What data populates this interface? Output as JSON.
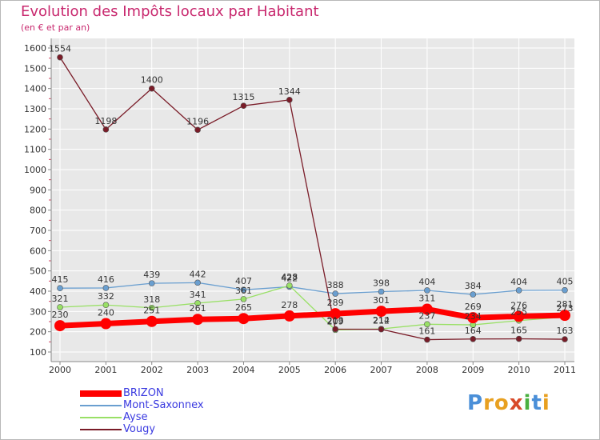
{
  "chart_data": {
    "type": "line",
    "title": "Evolution des Impôts locaux par Habitant",
    "subtitle": "(en € et par an)",
    "xlabel": "",
    "ylabel": "",
    "x": [
      "2000",
      "2001",
      "2002",
      "2003",
      "2004",
      "2005",
      "2006",
      "2007",
      "2008",
      "2009",
      "2010",
      "2011"
    ],
    "yticks": [
      100,
      200,
      300,
      400,
      500,
      600,
      700,
      800,
      900,
      1000,
      1100,
      1200,
      1300,
      1400,
      1500,
      1600
    ],
    "ylim": [
      100,
      1600
    ],
    "grid": true,
    "legend_position": "bottom-left",
    "series": [
      {
        "name": "BRIZON",
        "color": "#ff0000",
        "values": [
          230,
          240,
          251,
          261,
          265,
          278,
          289,
          301,
          311,
          269,
          276,
          281
        ],
        "labels": [
          "230",
          "240",
          "251",
          "261",
          "265",
          "278",
          "289",
          "301",
          "311",
          "269",
          "276",
          "281"
        ]
      },
      {
        "name": "Mont-Saxonnex",
        "color": "#6a9fd0",
        "values": [
          415,
          416,
          439,
          442,
          407,
          422,
          388,
          398,
          404,
          384,
          404,
          405
        ],
        "labels": [
          "415",
          "416",
          "439",
          "442",
          "407",
          "422",
          "388",
          "398",
          "404",
          "384",
          "404",
          "405"
        ]
      },
      {
        "name": "Ayse",
        "color": "#99e066",
        "values": [
          321,
          332,
          318,
          341,
          361,
          428,
          209,
          214,
          237,
          234,
          255,
          273
        ],
        "labels": [
          "321",
          "332",
          "318",
          "341",
          "361",
          "428",
          "209",
          "214",
          "237",
          "234",
          "255",
          "273"
        ]
      },
      {
        "name": "Vougy",
        "color": "#7a1c28",
        "values": [
          1554,
          1198,
          1400,
          1196,
          1315,
          1344,
          213,
          212,
          161,
          164,
          165,
          163
        ],
        "labels": [
          "1554",
          "1198",
          "1400",
          "1196",
          "1315",
          "1344",
          "213",
          "212",
          "161",
          "164",
          "165",
          "163"
        ]
      }
    ]
  },
  "logo": {
    "letters": [
      "P",
      "r",
      "o",
      "x",
      "i",
      "t",
      "i"
    ],
    "colors": [
      "#4a8fd8",
      "#e8a020",
      "#e8a020",
      "#d84a2a",
      "#4ab040",
      "#4a8fd8",
      "#e8a020"
    ]
  }
}
